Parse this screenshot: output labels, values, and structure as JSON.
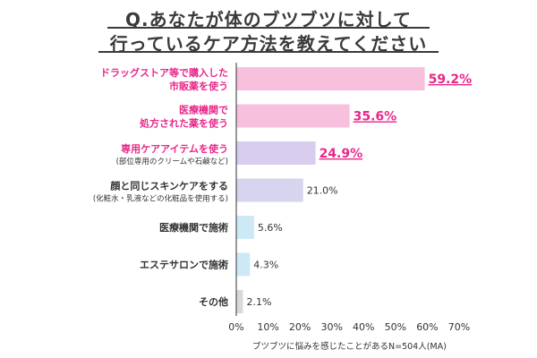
{
  "title": {
    "line1": "Q.あなたが体のブツブツに対して",
    "line2": "行っているケア方法を教えてください"
  },
  "footnote": "ブツブツに悩みを感じたことがあるN=504人(MA)",
  "colors": {
    "highlight_text": "#e8288a",
    "normal_text": "#333333",
    "bar_colors": [
      "#f7c1de",
      "#f7c1de",
      "#d9cdef",
      "#d6d4ee",
      "#cde9f5",
      "#cde9f5",
      "#d9d9d9"
    ]
  },
  "chart_data": {
    "type": "bar",
    "orientation": "horizontal",
    "categories": [
      [
        "ドラッグストア等で購入した",
        "市販薬を使う"
      ],
      [
        "医療機関で",
        "処方された薬を使う"
      ],
      [
        "専用ケアアイテムを使う",
        "(部位専用のクリームや石鹸など)"
      ],
      [
        "顔と同じスキンケアをする",
        "(化粧水・乳液などの化粧品を使用する)"
      ],
      [
        "医療機関で施術"
      ],
      [
        "エステサロンで施術"
      ],
      [
        "その他"
      ]
    ],
    "values": [
      59.2,
      35.6,
      24.9,
      21.0,
      5.6,
      4.3,
      2.1
    ],
    "value_labels": [
      "59.2%",
      "35.6%",
      "24.9%",
      "21.0%",
      "5.6%",
      "4.3%",
      "2.1%"
    ],
    "highlighted": [
      true,
      true,
      true,
      false,
      false,
      false,
      false
    ],
    "xlim": [
      0,
      70
    ],
    "xticks": [
      0,
      10,
      20,
      30,
      40,
      50,
      60,
      70
    ],
    "xtick_labels": [
      "0%",
      "10%",
      "20%",
      "30%",
      "40%",
      "50%",
      "60%",
      "70%"
    ],
    "xlabel": "ブツブツに悩みを感じたことがあるN=504人(MA)",
    "grid": false,
    "legend": "none"
  }
}
